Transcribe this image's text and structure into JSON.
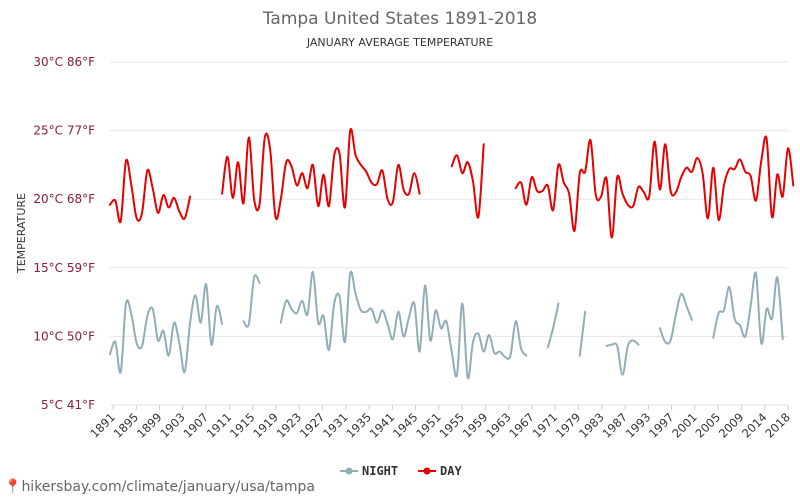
{
  "chart_data": {
    "type": "line",
    "title": "Tampa United States 1891-2018",
    "subtitle": "JANUARY AVERAGE TEMPERATURE",
    "ylabel": "TEMPERATURE",
    "xlabel": "",
    "ylim": [
      5,
      30
    ],
    "y_ticks": [
      {
        "value": 5,
        "label": "5°C 41°F"
      },
      {
        "value": 10,
        "label": "10°C 50°F"
      },
      {
        "value": 15,
        "label": "15°C 59°F"
      },
      {
        "value": 20,
        "label": "20°C 68°F"
      },
      {
        "value": 25,
        "label": "25°C 77°F"
      },
      {
        "value": 30,
        "label": "30°C 86°F"
      }
    ],
    "x_tick_labels": [
      "1891",
      "1895",
      "1899",
      "1903",
      "1907",
      "1911",
      "1915",
      "1919",
      "1923",
      "1927",
      "1931",
      "1935",
      "1941",
      "1945",
      "1951",
      "1955",
      "1959",
      "1963",
      "1967",
      "1971",
      "1979",
      "1983",
      "1987",
      "1993",
      "1997",
      "2001",
      "2005",
      "2009",
      "2014",
      "2018"
    ],
    "grid": true,
    "legend_position": "bottom-center",
    "series": [
      {
        "name": "NIGHT",
        "color": "#91aeb7",
        "segments": [
          [
            8.7,
            9.6,
            7.4,
            12.4,
            11.6,
            9.5,
            9.3,
            11.5,
            12.0,
            9.7,
            10.4,
            8.6,
            11.0,
            9.5,
            7.4,
            11.0,
            13.0,
            11.0,
            13.8,
            9.4,
            12.2,
            10.9
          ],
          [
            11.1,
            10.9,
            14.3,
            13.9
          ],
          [
            11.0,
            12.6,
            12.0,
            11.7,
            12.6,
            11.6,
            14.7,
            11.0,
            11.5,
            9.0,
            12.4,
            12.9,
            9.6,
            14.6,
            13.1,
            11.9,
            11.8,
            12.0,
            11.0,
            11.9,
            10.9,
            9.8,
            11.8,
            10.0,
            11.4,
            12.4,
            8.9,
            13.7,
            9.7,
            11.9,
            10.6,
            11.1,
            8.9,
            7.2,
            12.4,
            7.0,
            9.6,
            10.2,
            8.9,
            10.1,
            8.8,
            8.9,
            8.5,
            8.6,
            11.1,
            9.1,
            8.6
          ],
          [
            9.2,
            10.6,
            12.4
          ],
          [
            8.6,
            11.8
          ],
          [
            9.3,
            9.4,
            9.3,
            7.2,
            9.3,
            9.7,
            9.4
          ],
          [
            10.6,
            9.6,
            9.7,
            11.6,
            13.1,
            12.2,
            11.2
          ],
          [
            9.9,
            11.7,
            11.9,
            13.6,
            11.3,
            10.8,
            10.0,
            12.2,
            14.6,
            9.5,
            12.0,
            11.3,
            14.3,
            9.8
          ]
        ]
      },
      {
        "name": "DAY",
        "color": "#e60000",
        "segments": [
          [
            19.6,
            19.9,
            18.4,
            22.8,
            21.0,
            18.6,
            19.0,
            22.1,
            20.8,
            19.0,
            20.3,
            19.4,
            20.1,
            19.1,
            18.6,
            20.2
          ],
          [
            20.4,
            23.1,
            20.1,
            22.7,
            19.7,
            24.5,
            20.0,
            19.6,
            24.5,
            23.6,
            18.7,
            20.0,
            22.7,
            22.4,
            21.0,
            21.9,
            20.8,
            22.5,
            19.5,
            21.8,
            19.5,
            23.2,
            23.3,
            19.4,
            25.0,
            23.2,
            22.5,
            22.0,
            21.2,
            21.1,
            22.1,
            20.0,
            19.8,
            22.5,
            20.7,
            20.4,
            21.9,
            20.4
          ],
          [
            22.4,
            23.2,
            21.9,
            22.7,
            21.3,
            18.7,
            24.0
          ],
          [
            20.8,
            21.2,
            19.6,
            21.6,
            20.6,
            20.6,
            21.0,
            19.2,
            22.5,
            21.2,
            20.4,
            17.7,
            21.9,
            22.0,
            24.3,
            20.3,
            20.2,
            21.5,
            17.2,
            21.6,
            20.4,
            19.6,
            19.5,
            20.9,
            20.5,
            20.2,
            24.2,
            20.7,
            24.0,
            20.6,
            20.5,
            21.6,
            22.3,
            22.0,
            23.0,
            21.9,
            18.6,
            22.3,
            18.5,
            21.0,
            22.2,
            22.2,
            22.9,
            22.0,
            21.7,
            19.9,
            22.8,
            24.4,
            18.7,
            21.8,
            20.2,
            23.7,
            21.0
          ]
        ]
      }
    ]
  },
  "watermark": "hikersbay.com/climate/january/usa/tampa"
}
